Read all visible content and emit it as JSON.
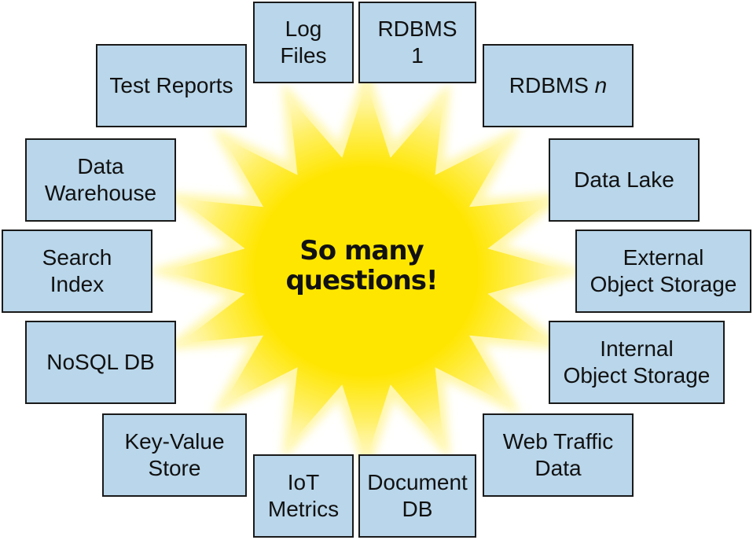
{
  "center": {
    "line1": "So many",
    "line2": "questions!"
  },
  "colors": {
    "box_fill": "#b9d6ea",
    "box_border": "#1a1a1a",
    "burst_core": "#ffe600",
    "burst_glow": "#fff6a8"
  },
  "sources": {
    "log_files": {
      "line1": "Log",
      "line2": "Files"
    },
    "rdbms_1": {
      "line1": "RDBMS",
      "line2": "1"
    },
    "rdbms_n": {
      "prefix": "RDBMS ",
      "italic": "n"
    },
    "test_reports": {
      "line1": "Test Reports"
    },
    "data_warehouse": {
      "line1": "Data",
      "line2": "Warehouse"
    },
    "data_lake": {
      "line1": "Data Lake"
    },
    "search_index": {
      "line1": "Search",
      "line2": "Index"
    },
    "external_object_storage": {
      "line1": "External",
      "line2": "Object Storage"
    },
    "nosql_db": {
      "line1": "NoSQL DB"
    },
    "internal_object_storage": {
      "line1": "Internal",
      "line2": "Object Storage"
    },
    "key_value_store": {
      "line1": "Key-Value",
      "line2": "Store"
    },
    "web_traffic_data": {
      "line1": "Web Traffic",
      "line2": "Data"
    },
    "iot_metrics": {
      "line1": "IoT",
      "line2": "Metrics"
    },
    "document_db": {
      "line1": "Document",
      "line2": "DB"
    }
  }
}
